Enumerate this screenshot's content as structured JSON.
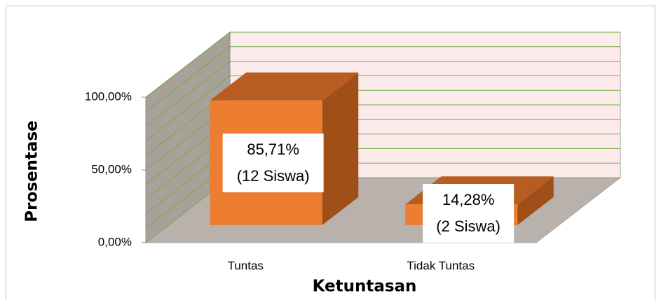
{
  "chart_data": {
    "type": "bar3d",
    "categories": [
      "Tuntas",
      "Tidak Tuntas"
    ],
    "values": [
      85.71,
      14.28
    ],
    "value_labels": [
      [
        "85,71%",
        "(12 Siswa)"
      ],
      [
        "14,28%",
        "(2 Siswa)"
      ]
    ],
    "color": "#ed7d31",
    "ylim": [
      0,
      100
    ],
    "yticks": [
      {
        "value": 0,
        "label": "0,00%"
      },
      {
        "value": 50,
        "label": "50,00%"
      },
      {
        "value": 100,
        "label": "100,00%"
      }
    ],
    "ygrid": [
      0,
      10,
      20,
      30,
      40,
      50,
      60,
      70,
      80,
      90,
      100
    ],
    "grid": true,
    "ylabel": "Prosentase",
    "xlabel": "Ketuntasan"
  }
}
